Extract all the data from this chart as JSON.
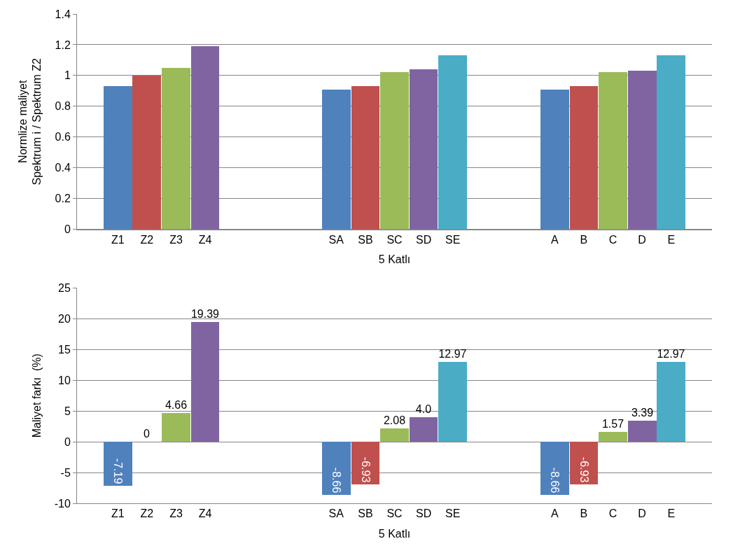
{
  "chart_data": [
    {
      "type": "bar",
      "categories": [
        "Z1",
        "Z2",
        "Z3",
        "Z4",
        null,
        "SA",
        "SB",
        "SC",
        "SD",
        "SE",
        "A",
        "B",
        "C",
        "D",
        "E"
      ],
      "values": [
        0.93,
        1.0,
        1.05,
        1.19,
        null,
        0.91,
        0.93,
        1.02,
        1.04,
        1.13,
        0.91,
        0.93,
        1.02,
        1.03,
        1.13
      ],
      "colors": [
        "#4f81bd",
        "#c0504d",
        "#9bbb59",
        "#8064a2",
        "#4bacc6",
        "#4f81bd",
        "#c0504d",
        "#9bbb59",
        "#8064a2",
        "#4bacc6",
        "#4f81bd",
        "#c0504d",
        "#9bbb59",
        "#8064a2",
        "#4bacc6"
      ],
      "ylim": [
        0,
        1.4
      ],
      "yticks": [
        0,
        0.2,
        0.4,
        0.6,
        0.8,
        1,
        1.2,
        1.4
      ],
      "grid": "y",
      "xlabel": "5 Katlı",
      "ylabel": "Normlize maliyet\nSpektrum i / Spektrum Z2"
    },
    {
      "type": "bar",
      "categories": [
        "Z1",
        "Z2",
        "Z3",
        "Z4",
        null,
        "SA",
        "SB",
        "SC",
        "SD",
        "SE",
        "A",
        "B",
        "C",
        "D",
        "E"
      ],
      "values": [
        -7.19,
        0,
        4.66,
        19.39,
        null,
        -8.66,
        -6.93,
        2.08,
        4.0,
        12.97,
        -8.66,
        -6.93,
        1.57,
        3.39,
        12.97
      ],
      "value_labels": [
        "-7.19",
        "0",
        "4.66",
        "19.39",
        null,
        "-8.66",
        "-6.93",
        "2.08",
        "4.0",
        "12.97",
        "-8.66",
        "-6.93",
        "1.57",
        "3.39",
        "12.97"
      ],
      "colors": [
        "#4f81bd",
        "#c0504d",
        "#9bbb59",
        "#8064a2",
        "#4bacc6",
        "#4f81bd",
        "#c0504d",
        "#9bbb59",
        "#8064a2",
        "#4bacc6",
        "#4f81bd",
        "#c0504d",
        "#9bbb59",
        "#8064a2",
        "#4bacc6"
      ],
      "ylim": [
        -10,
        25
      ],
      "yticks": [
        -10,
        -5,
        0,
        5,
        10,
        15,
        20,
        25
      ],
      "grid": "y",
      "xlabel": "5 Katlı",
      "ylabel": "Maliyet farkı  (%)"
    }
  ]
}
